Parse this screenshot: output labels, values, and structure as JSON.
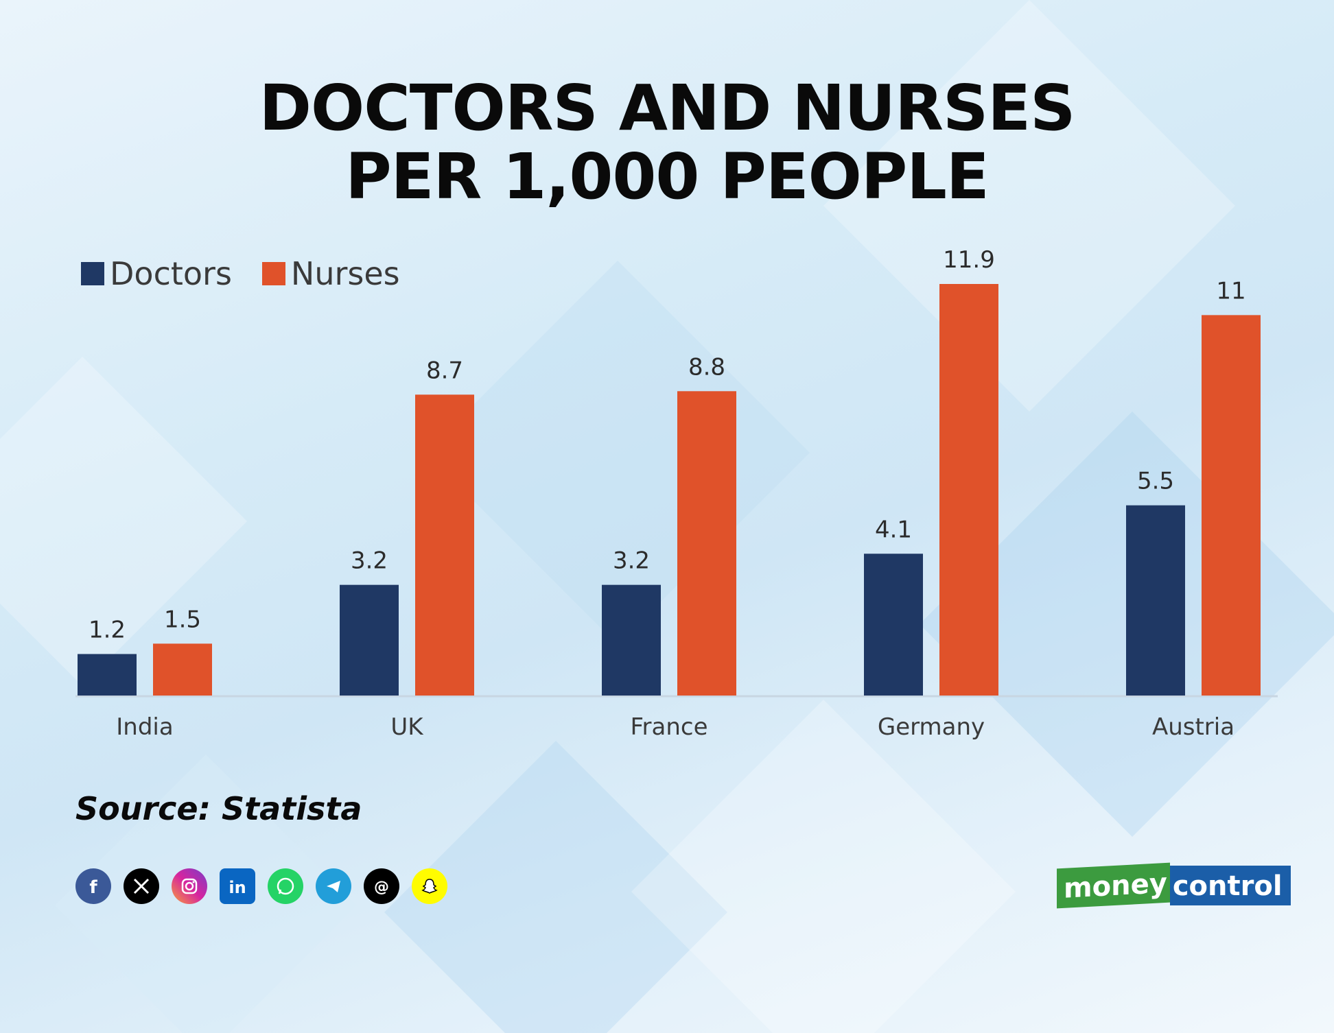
{
  "title_line1": "DOCTORS AND NURSES",
  "title_line2": "PER 1,000 PEOPLE",
  "source": "Source: Statista",
  "brand": {
    "part1": "money",
    "part2": "control",
    "color1": "#3c9b3f",
    "color2": "#1b5ea8"
  },
  "socials": [
    {
      "name": "facebook-icon",
      "color": "#3b5998"
    },
    {
      "name": "x-icon",
      "color": "#000000"
    },
    {
      "name": "instagram-icon",
      "color": "#d6249f"
    },
    {
      "name": "linkedin-icon",
      "color": "#0a66c2"
    },
    {
      "name": "whatsapp-icon",
      "color": "#25d366"
    },
    {
      "name": "telegram-icon",
      "color": "#229ed9"
    },
    {
      "name": "threads-icon",
      "color": "#000000"
    },
    {
      "name": "snapchat-icon",
      "color": "#fffc00"
    }
  ],
  "chart_data": {
    "type": "bar",
    "categories": [
      "India",
      "UK",
      "France",
      "Germany",
      "Austria"
    ],
    "series": [
      {
        "name": "Doctors",
        "color": "#1f3864",
        "values": [
          1.2,
          3.2,
          3.2,
          4.1,
          5.5
        ]
      },
      {
        "name": "Nurses",
        "color": "#e0522a",
        "values": [
          1.5,
          8.7,
          8.8,
          11.9,
          11
        ]
      }
    ],
    "value_labels": [
      [
        "1.2",
        "3.2",
        "3.2",
        "4.1",
        "5.5"
      ],
      [
        "1.5",
        "8.7",
        "8.8",
        "11.9",
        "11"
      ]
    ],
    "ylim": [
      0,
      11.9
    ],
    "grid": false,
    "legend": "top-left",
    "data_labels": true
  }
}
